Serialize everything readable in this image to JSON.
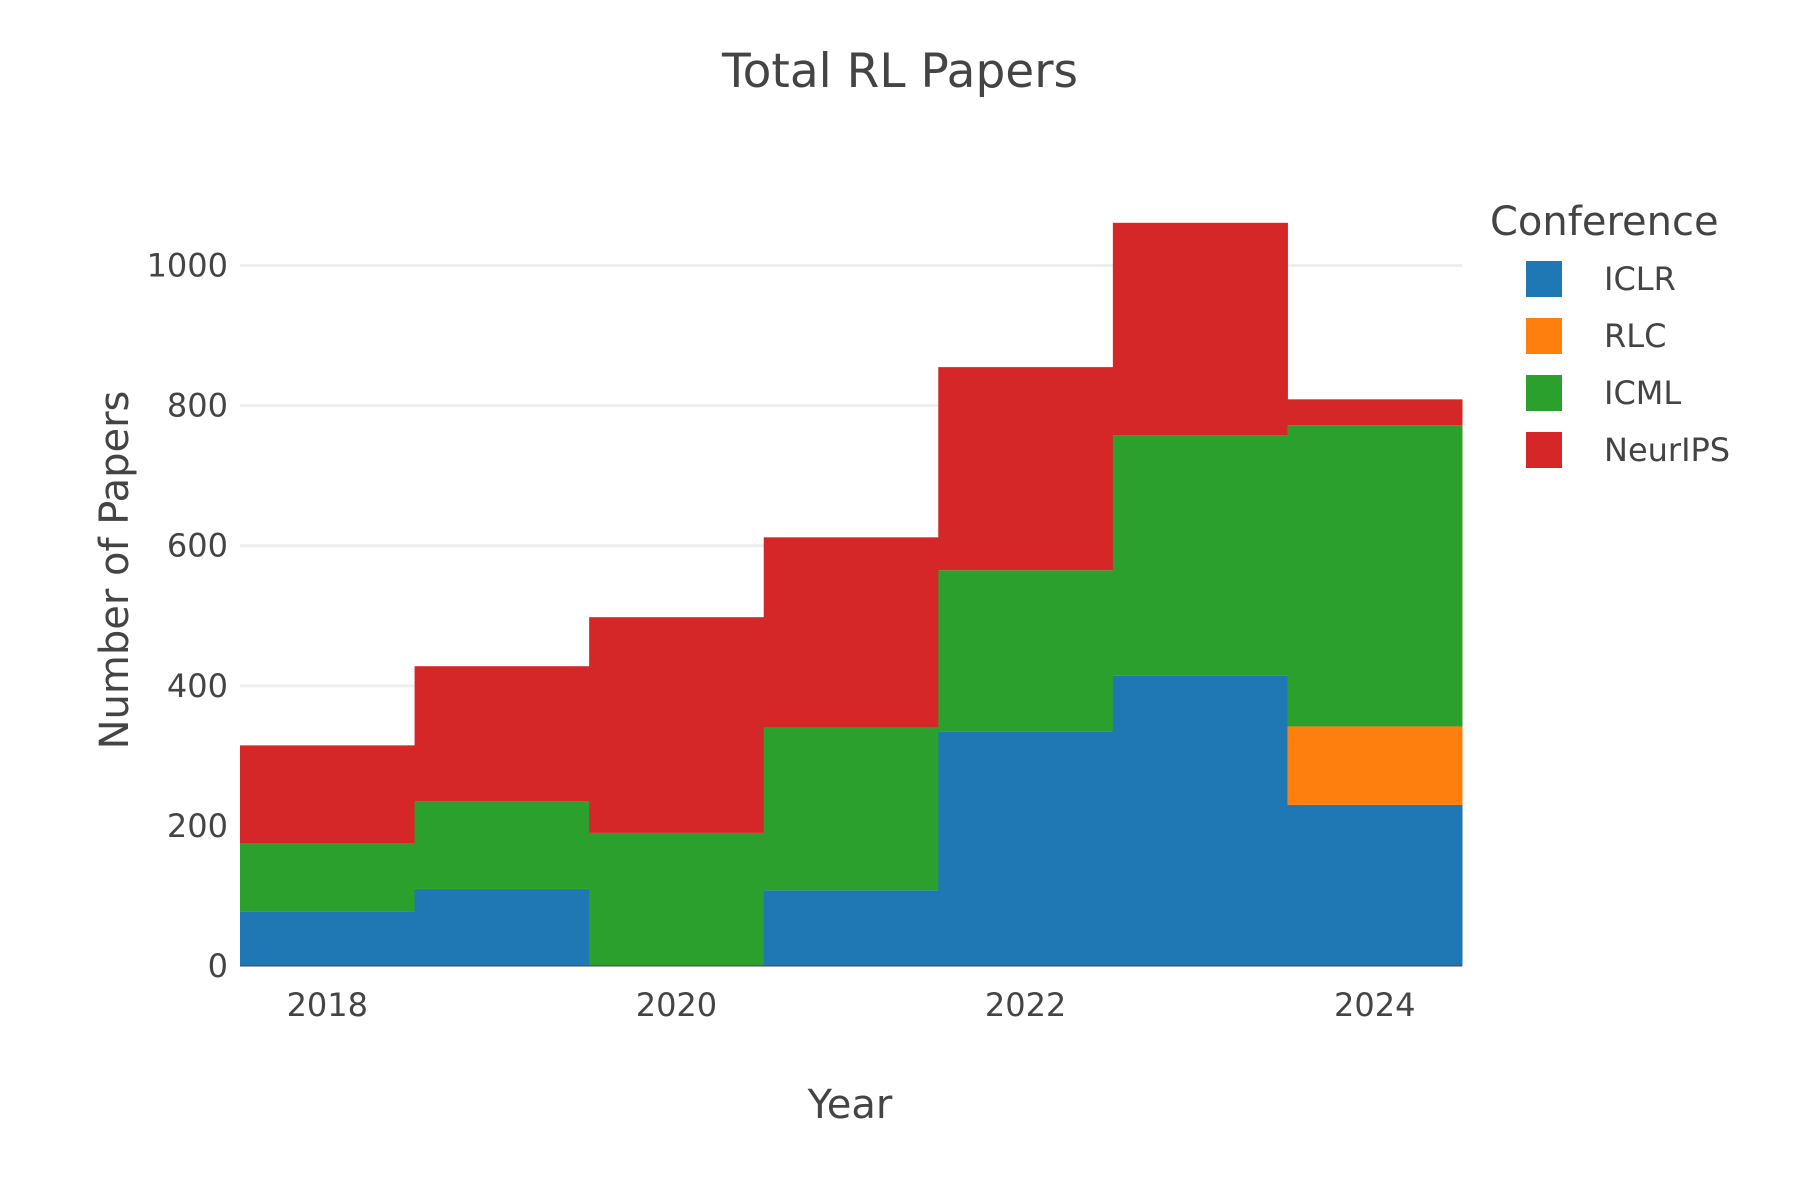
{
  "chart_data": {
    "type": "bar",
    "stacked": true,
    "title": "Total RL Papers",
    "xlabel": "Year",
    "ylabel": "Number of Papers",
    "x": [
      2018,
      2019,
      2020,
      2021,
      2022,
      2023,
      2024
    ],
    "x_ticks": [
      "2018",
      "2020",
      "2022",
      "2024"
    ],
    "y_ticks": [
      "0",
      "200",
      "400",
      "600",
      "800",
      "1000"
    ],
    "xlim": [
      2017.5,
      2024.5
    ],
    "ylim": [
      0,
      1115
    ],
    "grid": true,
    "legend_title": "Conference",
    "legend_position": "right",
    "series": [
      {
        "name": "ICLR",
        "color": "#1f77b4",
        "values": [
          78,
          110,
          0,
          108,
          335,
          415,
          230
        ]
      },
      {
        "name": "RLC",
        "color": "#ff7f0e",
        "values": [
          0,
          0,
          0,
          0,
          0,
          0,
          112
        ]
      },
      {
        "name": "ICML",
        "color": "#2ca02c",
        "values": [
          97,
          125,
          190,
          232,
          230,
          343,
          430
        ]
      },
      {
        "name": "NeurIPS",
        "color": "#d62728",
        "values": [
          140,
          193,
          308,
          272,
          290,
          303,
          37
        ]
      }
    ]
  }
}
